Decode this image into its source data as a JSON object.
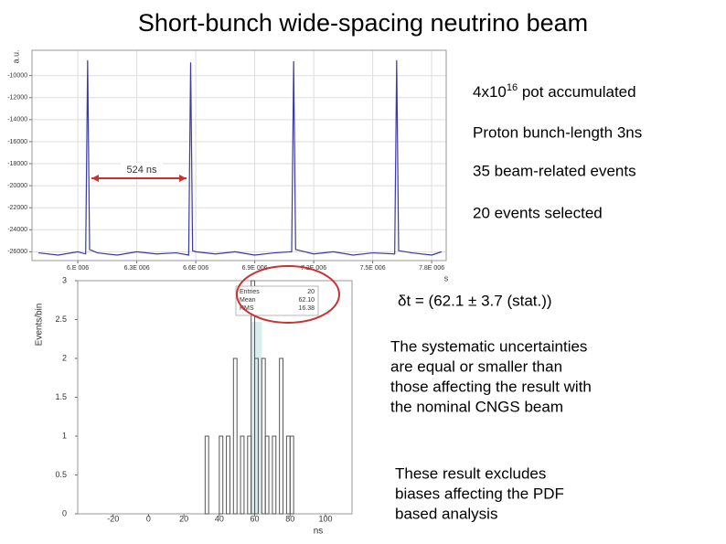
{
  "title": "Short-bunch wide-spacing neutrino beam",
  "notes": {
    "pot": {
      "base": "4x10",
      "exponent": "16",
      "rest": " pot accumulated"
    },
    "bullets": [
      "Proton bunch-length 3ns",
      "35 beam-related events",
      "20 events selected"
    ],
    "result": "δt = (62.1 ± 3.7 (stat.))",
    "systematics": [
      "The systematic uncertainties",
      "are equal or smaller than",
      "those affecting the result with",
      "the nominal CNGS beam"
    ],
    "caveat": [
      "These result excludes",
      "biases affecting the PDF",
      "based analysis"
    ]
  },
  "chart_data": [
    {
      "type": "line",
      "y_label": "a.u.",
      "x_label": "s",
      "annotation": "524 ns",
      "x": [
        5.8e-06,
        5.9e-06,
        6e-06,
        6.04e-06,
        6.05e-06,
        6.06e-06,
        6.1e-06,
        6.2e-06,
        6.3e-06,
        6.4e-06,
        6.5e-06,
        6.564e-06,
        6.574e-06,
        6.584e-06,
        6.6e-06,
        6.7e-06,
        6.8e-06,
        6.9e-06,
        7e-06,
        7.088e-06,
        7.098e-06,
        7.108e-06,
        7.2e-06,
        7.3e-06,
        7.4e-06,
        7.5e-06,
        7.612e-06,
        7.622e-06,
        7.632e-06,
        7.7e-06,
        7.8e-06,
        7.85e-06
      ],
      "series": [
        {
          "color": "#3a3aa0",
          "values": [
            -26100,
            -26300,
            -26000,
            -26200,
            -8600,
            -25800,
            -26100,
            -26300,
            -26000,
            -26200,
            -26100,
            -26300,
            -8800,
            -25900,
            -26000,
            -26200,
            -26000,
            -26300,
            -26100,
            -26000,
            -8700,
            -25800,
            -26200,
            -26000,
            -26300,
            -26100,
            -26200,
            -8600,
            -25900,
            -26100,
            -26300,
            -26000
          ]
        }
      ],
      "xlim": [
        5.767e-06,
        7.874e-06
      ],
      "ylim": [
        -26800,
        -7700
      ],
      "xticks": [
        {
          "value": 6e-06,
          "label": "6.E 006"
        },
        {
          "value": 6.3e-06,
          "label": "6.3E 006"
        },
        {
          "value": 6.6e-06,
          "label": "6.6E 006"
        },
        {
          "value": 6.9e-06,
          "label": "6.9E 006"
        },
        {
          "value": 7.2e-06,
          "label": "7.2E 006"
        },
        {
          "value": 7.5e-06,
          "label": "7.5E 006"
        },
        {
          "value": 7.8e-06,
          "label": "7.8E 006"
        }
      ],
      "yticks": [
        -10000,
        -12000,
        -14000,
        -16000,
        -18000,
        -20000,
        -22000,
        -24000,
        -26000
      ],
      "grid": true
    },
    {
      "type": "histogram",
      "y_label": "Events/bin",
      "x_label": "ns",
      "color": "#555555",
      "bins": [
        32,
        34,
        36,
        38,
        40,
        42,
        44,
        46,
        48,
        50,
        52,
        54,
        56,
        58,
        60,
        62,
        64,
        66,
        68,
        70,
        72,
        74,
        76,
        78,
        80,
        82
      ],
      "values": [
        1,
        0,
        0,
        0,
        1,
        0,
        1,
        0,
        2,
        0,
        1,
        0,
        1,
        3,
        2,
        0,
        2,
        1,
        0,
        1,
        0,
        2,
        0,
        1,
        1
      ],
      "highlight": {
        "range": [
          58,
          64
        ],
        "color": "#cde8ea"
      },
      "xlim": [
        -40,
        115
      ],
      "ylim": [
        0,
        3
      ],
      "xticks": [
        -20,
        0,
        20,
        40,
        60,
        80,
        100
      ],
      "yticks": [
        0,
        0.5,
        1,
        1.5,
        2,
        2.5,
        3
      ],
      "stats": {
        "labels": [
          "Entries",
          "Mean",
          "RMS"
        ],
        "values": [
          "20",
          "62.10",
          "16.38"
        ]
      }
    }
  ]
}
